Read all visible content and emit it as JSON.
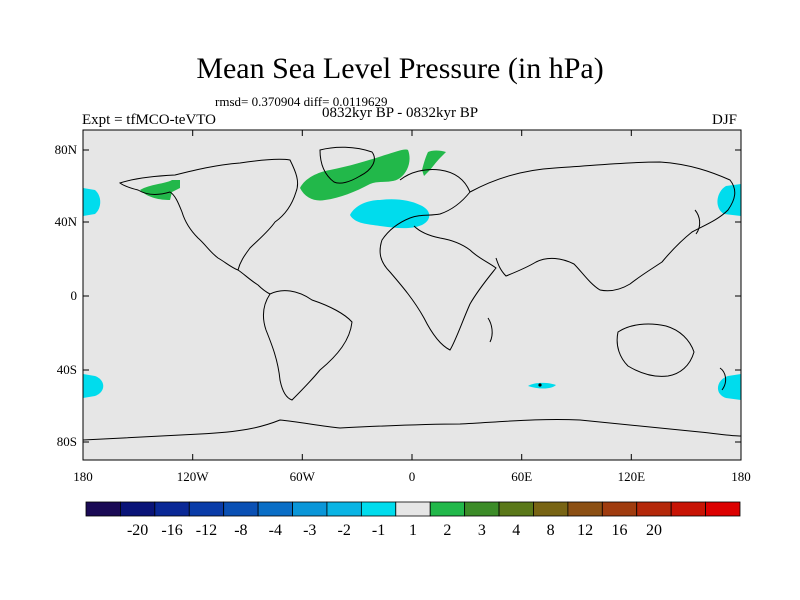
{
  "title": "Mean Sea Level Pressure (in hPa)",
  "stats_text": "rmsd= 0.370904 diff= 0.0119629",
  "period_text": "0832kyr BP - 0832kyr BP",
  "experiment_text": "Expt = tfMCO-teVTO",
  "season_text": "DJF",
  "colors": {
    "land_sea_background": "#e6e6e6",
    "positive_anomaly": "#22b84a",
    "negative_anomaly": "#00dced"
  },
  "map": {
    "lat_labels": [
      "80N",
      "40N",
      "0",
      "40S",
      "80S"
    ],
    "lon_labels": [
      "180",
      "120W",
      "60W",
      "0",
      "60E",
      "120E",
      "180"
    ]
  },
  "colorbar": {
    "colors": [
      "#1a0a55",
      "#0a1478",
      "#0a2896",
      "#0a3ca8",
      "#0a50b4",
      "#0a6ec6",
      "#0a96d8",
      "#0ab4e4",
      "#00dced",
      "#e6e6e6",
      "#22b84a",
      "#3c8c28",
      "#5a7819",
      "#786414",
      "#8c5014",
      "#a03c0f",
      "#b4280a",
      "#c81405",
      "#dc0000"
    ],
    "labels": [
      "-20",
      "-16",
      "-12",
      "-8",
      "-4",
      "-3",
      "-2",
      "-1",
      "1",
      "2",
      "3",
      "4",
      "8",
      "12",
      "16",
      "20"
    ]
  }
}
